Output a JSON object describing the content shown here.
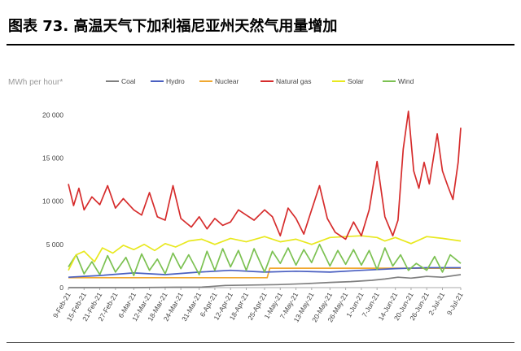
{
  "figure_title": "图表 73. 高温天气下加利福尼亚州天然气用量增加",
  "chart_data": {
    "type": "line",
    "ylabel": "MWh per hour*",
    "ylim": [
      0,
      22000
    ],
    "yticks": [
      0,
      5000,
      10000,
      15000,
      20000
    ],
    "ytick_labels": [
      "0",
      "5 000",
      "10 000",
      "15 000",
      "20 000"
    ],
    "x_start": "2021-02-09",
    "x_end": "2021-07-09",
    "xtick_labels": [
      "9-Feb-21",
      "15-Feb-21",
      "21-Feb-21",
      "27-Feb-21",
      "6-Mar-21",
      "12-Mar-21",
      "18-Mar-21",
      "24-Mar-21",
      "31-Mar-21",
      "6-Apr-21",
      "12-Apr-21",
      "18-Apr-21",
      "25-Apr-21",
      "1-May-21",
      "7-May-21",
      "13-May-21",
      "20-May-21",
      "26-May-21",
      "1-Jun-21",
      "7-Jun-21",
      "14-Jun-21",
      "20-Jun-21",
      "26-Jun-21",
      "2-Jul-21",
      "9-Jul-21"
    ],
    "xtick_dates": [
      "2021-02-09",
      "2021-02-15",
      "2021-02-21",
      "2021-02-27",
      "2021-03-06",
      "2021-03-12",
      "2021-03-18",
      "2021-03-24",
      "2021-03-31",
      "2021-04-06",
      "2021-04-12",
      "2021-04-18",
      "2021-04-25",
      "2021-05-01",
      "2021-05-07",
      "2021-05-13",
      "2021-05-20",
      "2021-05-26",
      "2021-06-01",
      "2021-06-07",
      "2021-06-14",
      "2021-06-20",
      "2021-06-26",
      "2021-07-02",
      "2021-07-09"
    ],
    "grid": false,
    "legend_position": "top",
    "series": [
      {
        "name": "Coal",
        "color": "#7f7f7f",
        "points": [
          [
            "2021-02-09",
            0
          ],
          [
            "2021-03-06",
            0
          ],
          [
            "2021-03-22",
            50
          ],
          [
            "2021-04-01",
            60
          ],
          [
            "2021-04-10",
            250
          ],
          [
            "2021-04-20",
            300
          ],
          [
            "2021-04-30",
            350
          ],
          [
            "2021-05-10",
            450
          ],
          [
            "2021-05-20",
            600
          ],
          [
            "2021-05-28",
            700
          ],
          [
            "2021-06-05",
            850
          ],
          [
            "2021-06-10",
            1000
          ],
          [
            "2021-06-15",
            1200
          ],
          [
            "2021-06-20",
            1100
          ],
          [
            "2021-06-26",
            1300
          ],
          [
            "2021-07-02",
            1200
          ],
          [
            "2021-07-09",
            1500
          ]
        ]
      },
      {
        "name": "Hydro",
        "color": "#4a5fc1",
        "points": [
          [
            "2021-02-09",
            1200
          ],
          [
            "2021-02-21",
            1400
          ],
          [
            "2021-03-06",
            1700
          ],
          [
            "2021-03-18",
            1500
          ],
          [
            "2021-03-31",
            1800
          ],
          [
            "2021-04-12",
            2000
          ],
          [
            "2021-04-25",
            1800
          ],
          [
            "2021-05-07",
            1900
          ],
          [
            "2021-05-20",
            1800
          ],
          [
            "2021-06-01",
            2000
          ],
          [
            "2021-06-14",
            2200
          ],
          [
            "2021-06-26",
            2300
          ],
          [
            "2021-07-09",
            2300
          ]
        ]
      },
      {
        "name": "Nuclear",
        "color": "#f0a830",
        "points": [
          [
            "2021-02-09",
            1150
          ],
          [
            "2021-04-26",
            1150
          ],
          [
            "2021-04-27",
            2250
          ],
          [
            "2021-07-09",
            2250
          ]
        ]
      },
      {
        "name": "Natural gas",
        "color": "#d62c2c",
        "points": [
          [
            "2021-02-09",
            12000
          ],
          [
            "2021-02-11",
            9500
          ],
          [
            "2021-02-13",
            11500
          ],
          [
            "2021-02-15",
            9000
          ],
          [
            "2021-02-18",
            10500
          ],
          [
            "2021-02-21",
            9600
          ],
          [
            "2021-02-24",
            11800
          ],
          [
            "2021-02-27",
            9200
          ],
          [
            "2021-03-02",
            10300
          ],
          [
            "2021-03-06",
            9000
          ],
          [
            "2021-03-09",
            8400
          ],
          [
            "2021-03-12",
            11000
          ],
          [
            "2021-03-15",
            8200
          ],
          [
            "2021-03-18",
            7800
          ],
          [
            "2021-03-21",
            11800
          ],
          [
            "2021-03-24",
            8000
          ],
          [
            "2021-03-28",
            7000
          ],
          [
            "2021-03-31",
            8200
          ],
          [
            "2021-04-03",
            6800
          ],
          [
            "2021-04-06",
            8000
          ],
          [
            "2021-04-09",
            7200
          ],
          [
            "2021-04-12",
            7600
          ],
          [
            "2021-04-15",
            9000
          ],
          [
            "2021-04-18",
            8400
          ],
          [
            "2021-04-21",
            7800
          ],
          [
            "2021-04-25",
            9000
          ],
          [
            "2021-04-28",
            8200
          ],
          [
            "2021-05-01",
            6000
          ],
          [
            "2021-05-04",
            9200
          ],
          [
            "2021-05-07",
            8000
          ],
          [
            "2021-05-10",
            6200
          ],
          [
            "2021-05-13",
            9000
          ],
          [
            "2021-05-16",
            11800
          ],
          [
            "2021-05-19",
            8000
          ],
          [
            "2021-05-22",
            6400
          ],
          [
            "2021-05-26",
            5600
          ],
          [
            "2021-05-29",
            7600
          ],
          [
            "2021-06-01",
            6000
          ],
          [
            "2021-06-04",
            9000
          ],
          [
            "2021-06-07",
            14600
          ],
          [
            "2021-06-10",
            8200
          ],
          [
            "2021-06-13",
            6000
          ],
          [
            "2021-06-15",
            7800
          ],
          [
            "2021-06-17",
            16000
          ],
          [
            "2021-06-19",
            20400
          ],
          [
            "2021-06-21",
            13500
          ],
          [
            "2021-06-23",
            11500
          ],
          [
            "2021-06-25",
            14500
          ],
          [
            "2021-06-27",
            12000
          ],
          [
            "2021-06-30",
            17800
          ],
          [
            "2021-07-02",
            13500
          ],
          [
            "2021-07-04",
            11800
          ],
          [
            "2021-07-06",
            10200
          ],
          [
            "2021-07-08",
            14500
          ],
          [
            "2021-07-09",
            18500
          ]
        ]
      },
      {
        "name": "Solar",
        "color": "#e8e81e",
        "points": [
          [
            "2021-02-09",
            2000
          ],
          [
            "2021-02-12",
            3800
          ],
          [
            "2021-02-15",
            4200
          ],
          [
            "2021-02-19",
            3000
          ],
          [
            "2021-02-22",
            4600
          ],
          [
            "2021-02-26",
            4000
          ],
          [
            "2021-03-02",
            4900
          ],
          [
            "2021-03-06",
            4400
          ],
          [
            "2021-03-10",
            5000
          ],
          [
            "2021-03-14",
            4300
          ],
          [
            "2021-03-18",
            5100
          ],
          [
            "2021-03-22",
            4700
          ],
          [
            "2021-03-27",
            5400
          ],
          [
            "2021-04-01",
            5600
          ],
          [
            "2021-04-06",
            5000
          ],
          [
            "2021-04-12",
            5700
          ],
          [
            "2021-04-18",
            5300
          ],
          [
            "2021-04-25",
            5900
          ],
          [
            "2021-05-01",
            5300
          ],
          [
            "2021-05-07",
            5600
          ],
          [
            "2021-05-13",
            5000
          ],
          [
            "2021-05-20",
            5800
          ],
          [
            "2021-05-26",
            5900
          ],
          [
            "2021-06-01",
            6000
          ],
          [
            "2021-06-07",
            5800
          ],
          [
            "2021-06-10",
            5400
          ],
          [
            "2021-06-14",
            5800
          ],
          [
            "2021-06-20",
            5100
          ],
          [
            "2021-06-26",
            5900
          ],
          [
            "2021-07-02",
            5700
          ],
          [
            "2021-07-09",
            5400
          ]
        ]
      },
      {
        "name": "Wind",
        "color": "#7cc152",
        "points": [
          [
            "2021-02-09",
            2400
          ],
          [
            "2021-02-12",
            3800
          ],
          [
            "2021-02-15",
            1600
          ],
          [
            "2021-02-18",
            3000
          ],
          [
            "2021-02-21",
            1500
          ],
          [
            "2021-02-24",
            3700
          ],
          [
            "2021-02-27",
            1800
          ],
          [
            "2021-03-03",
            3500
          ],
          [
            "2021-03-06",
            1400
          ],
          [
            "2021-03-09",
            3900
          ],
          [
            "2021-03-12",
            2000
          ],
          [
            "2021-03-15",
            3300
          ],
          [
            "2021-03-18",
            1600
          ],
          [
            "2021-03-21",
            4000
          ],
          [
            "2021-03-24",
            2200
          ],
          [
            "2021-03-27",
            3800
          ],
          [
            "2021-03-31",
            1500
          ],
          [
            "2021-04-03",
            4200
          ],
          [
            "2021-04-06",
            2000
          ],
          [
            "2021-04-09",
            4500
          ],
          [
            "2021-04-12",
            2400
          ],
          [
            "2021-04-15",
            4300
          ],
          [
            "2021-04-18",
            2000
          ],
          [
            "2021-04-21",
            4500
          ],
          [
            "2021-04-25",
            1800
          ],
          [
            "2021-04-28",
            4200
          ],
          [
            "2021-05-01",
            2800
          ],
          [
            "2021-05-04",
            4600
          ],
          [
            "2021-05-07",
            2600
          ],
          [
            "2021-05-10",
            4400
          ],
          [
            "2021-05-13",
            2900
          ],
          [
            "2021-05-16",
            5000
          ],
          [
            "2021-05-20",
            2500
          ],
          [
            "2021-05-23",
            4300
          ],
          [
            "2021-05-26",
            2700
          ],
          [
            "2021-05-29",
            4400
          ],
          [
            "2021-06-01",
            2600
          ],
          [
            "2021-06-04",
            4300
          ],
          [
            "2021-06-07",
            2100
          ],
          [
            "2021-06-10",
            4600
          ],
          [
            "2021-06-13",
            2500
          ],
          [
            "2021-06-16",
            3800
          ],
          [
            "2021-06-19",
            2000
          ],
          [
            "2021-06-22",
            2800
          ],
          [
            "2021-06-26",
            2000
          ],
          [
            "2021-06-29",
            3600
          ],
          [
            "2021-07-02",
            1800
          ],
          [
            "2021-07-05",
            3800
          ],
          [
            "2021-07-09",
            2800
          ]
        ]
      }
    ]
  }
}
